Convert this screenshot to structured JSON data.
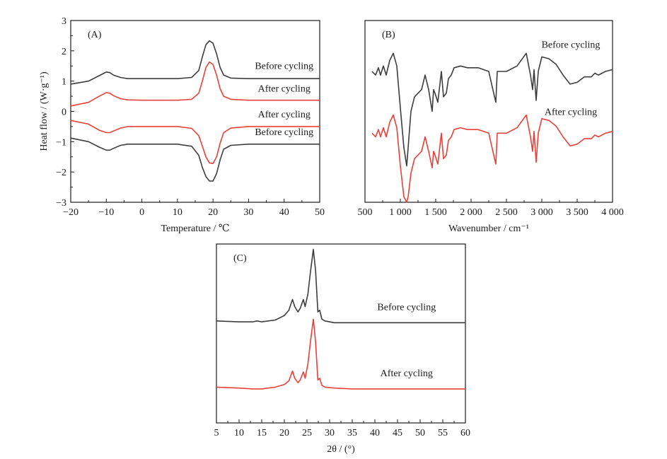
{
  "colors": {
    "before": "#3d3d3d",
    "after": "#e8403a"
  },
  "chart_data": [
    {
      "id": "A",
      "type": "line",
      "panel_label": "(A)",
      "xlabel": "Temperature / ℃",
      "ylabel": "Heat flow / (W·g⁻¹)",
      "xlim": [
        -20,
        50
      ],
      "ylim": [
        -3,
        3
      ],
      "xticks": [
        -20,
        -10,
        0,
        10,
        20,
        30,
        40,
        50
      ],
      "yticks": [
        -3,
        -2,
        -1,
        0,
        1,
        2,
        3
      ],
      "xtick_labels": [
        "−20",
        "−10",
        "0",
        "10",
        "20",
        "30",
        "40",
        "50"
      ],
      "ytick_labels": [
        "−3",
        "−2",
        "−1",
        "0",
        "1",
        "2",
        "3"
      ],
      "series": [
        {
          "name": "Before cycling",
          "color_key": "before",
          "x": [
            -20,
            -15,
            -12,
            -10,
            -9,
            -8,
            -6,
            -4,
            0,
            10,
            14,
            16,
            17,
            18,
            19,
            20,
            21,
            22,
            23,
            25,
            30,
            40,
            50
          ],
          "y": [
            0.9,
            1.0,
            1.18,
            1.3,
            1.28,
            1.2,
            1.12,
            1.08,
            1.08,
            1.08,
            1.12,
            1.35,
            1.8,
            2.2,
            2.33,
            2.25,
            1.9,
            1.45,
            1.2,
            1.1,
            1.08,
            1.08,
            1.08
          ],
          "label_xy": [
            40,
            1.4
          ]
        },
        {
          "name": "After cycling",
          "color_key": "after",
          "x": [
            -20,
            -15,
            -12,
            -10,
            -9,
            -8,
            -6,
            -4,
            0,
            10,
            14,
            16,
            17,
            18,
            19,
            20,
            21,
            22,
            23,
            25,
            30,
            40,
            50
          ],
          "y": [
            0.18,
            0.3,
            0.5,
            0.62,
            0.6,
            0.52,
            0.42,
            0.38,
            0.37,
            0.37,
            0.4,
            0.6,
            1.0,
            1.45,
            1.63,
            1.55,
            1.2,
            0.75,
            0.5,
            0.4,
            0.37,
            0.37,
            0.37
          ],
          "label_xy": [
            40,
            0.65
          ]
        },
        {
          "name": "After cycling",
          "color_key": "after",
          "x": [
            -20,
            -15,
            -12,
            -10,
            -9,
            -8,
            -6,
            -4,
            0,
            10,
            14,
            16,
            17,
            18,
            19,
            20,
            21,
            22,
            23,
            25,
            30,
            40,
            50
          ],
          "y": [
            -0.3,
            -0.42,
            -0.62,
            -0.7,
            -0.7,
            -0.65,
            -0.55,
            -0.5,
            -0.5,
            -0.5,
            -0.56,
            -0.8,
            -1.15,
            -1.5,
            -1.7,
            -1.72,
            -1.5,
            -1.05,
            -0.7,
            -0.55,
            -0.5,
            -0.5,
            -0.5
          ],
          "label_xy": [
            40,
            -0.2
          ]
        },
        {
          "name": "Before cycling",
          "color_key": "before",
          "x": [
            -20,
            -15,
            -12,
            -10,
            -9,
            -8,
            -6,
            -4,
            0,
            10,
            14,
            16,
            17,
            18,
            19,
            20,
            21,
            22,
            23,
            25,
            30,
            40,
            50
          ],
          "y": [
            -0.88,
            -1.0,
            -1.18,
            -1.28,
            -1.28,
            -1.22,
            -1.12,
            -1.08,
            -1.08,
            -1.08,
            -1.15,
            -1.45,
            -1.85,
            -2.15,
            -2.3,
            -2.3,
            -2.05,
            -1.6,
            -1.25,
            -1.12,
            -1.08,
            -1.08,
            -1.08
          ],
          "label_xy": [
            40,
            -0.78
          ]
        }
      ]
    },
    {
      "id": "B",
      "type": "line",
      "panel_label": "(B)",
      "xlabel": "Wavenumber / cm⁻¹",
      "ylabel": "",
      "xlim": [
        500,
        4000
      ],
      "ylim": [
        0,
        1
      ],
      "xticks": [
        500,
        1000,
        1500,
        2000,
        2500,
        3000,
        3500,
        4000
      ],
      "yticks": [],
      "xtick_labels": [
        "500",
        "1 000",
        "1 500",
        "2 000",
        "2 500",
        "3 000",
        "3 500",
        "4 000"
      ],
      "ytick_labels": [],
      "series": [
        {
          "name": "Before cycling",
          "color_key": "before",
          "x": [
            600,
            650,
            690,
            720,
            760,
            800,
            850,
            900,
            950,
            1000,
            1050,
            1090,
            1110,
            1150,
            1200,
            1300,
            1350,
            1400,
            1450,
            1470,
            1490,
            1530,
            1580,
            1610,
            1650,
            1680,
            1720,
            1760,
            1850,
            1950,
            2100,
            2250,
            2320,
            2350,
            2370,
            2400,
            2500,
            2650,
            2780,
            2840,
            2870,
            2890,
            2920,
            2950,
            3000,
            3100,
            3200,
            3300,
            3400,
            3500,
            3600,
            3700,
            3750,
            3800,
            3900,
            4000
          ],
          "x_note": "",
          "y": [
            0.72,
            0.7,
            0.74,
            0.7,
            0.75,
            0.7,
            0.78,
            0.82,
            0.75,
            0.52,
            0.3,
            0.2,
            0.3,
            0.5,
            0.58,
            0.62,
            0.7,
            0.62,
            0.5,
            0.62,
            0.6,
            0.55,
            0.72,
            0.58,
            0.6,
            0.68,
            0.7,
            0.74,
            0.75,
            0.74,
            0.74,
            0.72,
            0.6,
            0.55,
            0.72,
            0.72,
            0.72,
            0.75,
            0.82,
            0.7,
            0.62,
            0.73,
            0.56,
            0.72,
            0.8,
            0.79,
            0.76,
            0.7,
            0.65,
            0.66,
            0.69,
            0.69,
            0.71,
            0.7,
            0.72,
            0.73
          ],
          "label_xy": [
            3410,
            0.85
          ]
        },
        {
          "name": "After cycling",
          "color_key": "after",
          "x": [
            600,
            650,
            690,
            720,
            760,
            800,
            850,
            900,
            950,
            1000,
            1050,
            1090,
            1110,
            1150,
            1200,
            1300,
            1350,
            1400,
            1450,
            1470,
            1490,
            1530,
            1580,
            1610,
            1650,
            1680,
            1720,
            1760,
            1850,
            1950,
            2100,
            2250,
            2320,
            2350,
            2370,
            2400,
            2500,
            2650,
            2780,
            2840,
            2870,
            2890,
            2920,
            2950,
            3000,
            3100,
            3200,
            3300,
            3400,
            3500,
            3600,
            3700,
            3750,
            3800,
            3900,
            4000
          ],
          "y": [
            0.38,
            0.36,
            0.4,
            0.36,
            0.41,
            0.36,
            0.44,
            0.48,
            0.41,
            0.2,
            0.03,
            0.0,
            0.03,
            0.16,
            0.24,
            0.28,
            0.36,
            0.28,
            0.19,
            0.28,
            0.26,
            0.21,
            0.38,
            0.24,
            0.26,
            0.34,
            0.36,
            0.4,
            0.41,
            0.4,
            0.4,
            0.38,
            0.26,
            0.21,
            0.38,
            0.38,
            0.38,
            0.41,
            0.48,
            0.36,
            0.28,
            0.39,
            0.22,
            0.38,
            0.46,
            0.45,
            0.42,
            0.36,
            0.31,
            0.32,
            0.35,
            0.35,
            0.37,
            0.36,
            0.38,
            0.39
          ],
          "label_xy": [
            3410,
            0.48
          ]
        }
      ]
    },
    {
      "id": "C",
      "type": "line",
      "panel_label": "(C)",
      "xlabel": "2θ / (°)",
      "ylabel": "",
      "xlim": [
        5,
        60
      ],
      "ylim": [
        0,
        1
      ],
      "xticks": [
        5,
        10,
        15,
        20,
        25,
        30,
        35,
        40,
        45,
        50,
        55,
        60
      ],
      "yticks": [],
      "xtick_labels": [
        "5",
        "10",
        "15",
        "20",
        "25",
        "30",
        "35",
        "40",
        "45",
        "50",
        "55",
        "60"
      ],
      "ytick_labels": [],
      "series": [
        {
          "name": "Before cycling",
          "color_key": "before",
          "x": [
            5,
            10,
            13,
            14,
            15,
            18,
            20,
            21,
            21.8,
            22.3,
            23,
            23.5,
            24.2,
            24.6,
            25.2,
            25.8,
            26.4,
            26.9,
            27.4,
            27.8,
            28.3,
            29,
            31,
            35,
            40,
            45,
            50,
            55,
            60
          ],
          "y": [
            0.57,
            0.565,
            0.565,
            0.57,
            0.565,
            0.575,
            0.6,
            0.63,
            0.69,
            0.65,
            0.62,
            0.64,
            0.69,
            0.65,
            0.72,
            0.85,
            0.97,
            0.85,
            0.62,
            0.63,
            0.58,
            0.57,
            0.56,
            0.56,
            0.56,
            0.56,
            0.56,
            0.56,
            0.56
          ],
          "label_xy": [
            47,
            0.63
          ]
        },
        {
          "name": "After cycling",
          "color_key": "after",
          "x": [
            5,
            10,
            13,
            14,
            15,
            18,
            20,
            21,
            21.8,
            22.3,
            23,
            23.5,
            24.2,
            24.6,
            25.2,
            25.8,
            26.4,
            26.9,
            27.4,
            27.8,
            28.3,
            29,
            31,
            35,
            40,
            45,
            50,
            55,
            60
          ],
          "y": [
            0.2,
            0.195,
            0.19,
            0.19,
            0.19,
            0.2,
            0.215,
            0.235,
            0.29,
            0.25,
            0.225,
            0.24,
            0.285,
            0.25,
            0.33,
            0.46,
            0.58,
            0.45,
            0.24,
            0.25,
            0.21,
            0.2,
            0.195,
            0.19,
            0.19,
            0.19,
            0.19,
            0.19,
            0.19
          ],
          "label_xy": [
            47,
            0.26
          ]
        }
      ]
    }
  ]
}
